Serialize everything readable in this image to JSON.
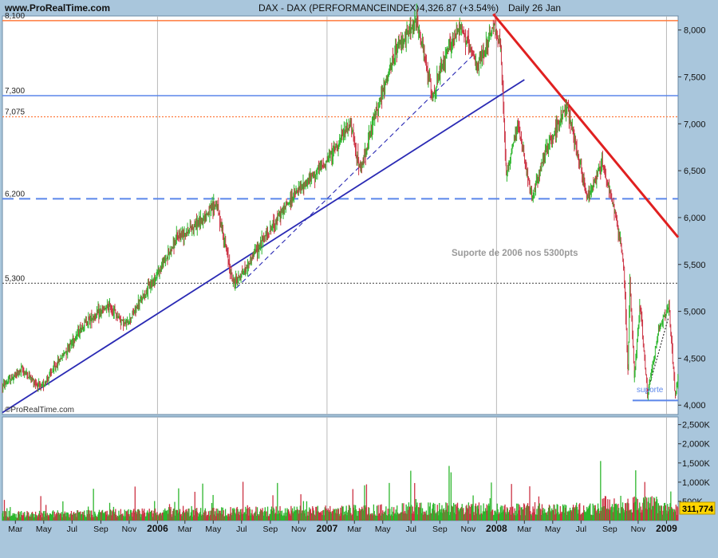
{
  "header": {
    "site": "www.ProRealTime.com",
    "instrument": "DAX - DAX (PERFORMANCEINDEX)",
    "last": "4,326.87 (+3.54%)",
    "period": "Daily  26 Jan"
  },
  "watermark": "©ProRealTime.com",
  "annotations": {
    "support_2006": "Suporte de 2006 nos 5300pts",
    "support": "suporte"
  },
  "colors": {
    "price_up": "#2db62d",
    "price_down": "#cc3344",
    "resistance_line": "#e02020",
    "trend_line": "#2a2ab4",
    "level_blue": "#5b86ea",
    "level_orange": "#ff7a3c"
  },
  "chart_data": [
    {
      "type": "line",
      "name": "price",
      "y_axis": {
        "min": 3900,
        "max": 8150,
        "ticks": [
          4000,
          4500,
          5000,
          5500,
          6000,
          6500,
          7000,
          7500,
          8000
        ],
        "tick_labels": [
          "4,000",
          "4,500",
          "5,000",
          "5,500",
          "6,000",
          "6,500",
          "7,000",
          "7,500",
          "8,000"
        ]
      },
      "x_axis": {
        "start": "2005-02-01",
        "end": "2009-01-26",
        "tick_labels": [
          {
            "date": "2005-03-01",
            "label": "Mar"
          },
          {
            "date": "2005-05-01",
            "label": "May"
          },
          {
            "date": "2005-07-01",
            "label": "Jul"
          },
          {
            "date": "2005-09-01",
            "label": "Sep"
          },
          {
            "date": "2005-11-01",
            "label": "Nov"
          },
          {
            "date": "2006-01-01",
            "label": "2006",
            "year": true
          },
          {
            "date": "2006-03-01",
            "label": "Mar"
          },
          {
            "date": "2006-05-01",
            "label": "May"
          },
          {
            "date": "2006-07-01",
            "label": "Jul"
          },
          {
            "date": "2006-09-01",
            "label": "Sep"
          },
          {
            "date": "2006-11-01",
            "label": "Nov"
          },
          {
            "date": "2007-01-01",
            "label": "2007",
            "year": true
          },
          {
            "date": "2007-03-01",
            "label": "Mar"
          },
          {
            "date": "2007-05-01",
            "label": "May"
          },
          {
            "date": "2007-07-01",
            "label": "Jul"
          },
          {
            "date": "2007-09-01",
            "label": "Sep"
          },
          {
            "date": "2007-11-01",
            "label": "Nov"
          },
          {
            "date": "2008-01-01",
            "label": "2008",
            "year": true
          },
          {
            "date": "2008-03-01",
            "label": "Mar"
          },
          {
            "date": "2008-05-01",
            "label": "May"
          },
          {
            "date": "2008-07-01",
            "label": "Jul"
          },
          {
            "date": "2008-09-01",
            "label": "Sep"
          },
          {
            "date": "2008-11-01",
            "label": "Nov"
          },
          {
            "date": "2009-01-01",
            "label": "2009",
            "year": true
          }
        ]
      },
      "key_points": [
        {
          "date": "2005-02-01",
          "value": 4200
        },
        {
          "date": "2005-03-15",
          "value": 4380
        },
        {
          "date": "2005-04-25",
          "value": 4180
        },
        {
          "date": "2005-06-20",
          "value": 4600
        },
        {
          "date": "2005-08-01",
          "value": 4900
        },
        {
          "date": "2005-09-20",
          "value": 5050
        },
        {
          "date": "2005-10-25",
          "value": 4850
        },
        {
          "date": "2005-12-31",
          "value": 5400
        },
        {
          "date": "2006-02-15",
          "value": 5800
        },
        {
          "date": "2006-04-01",
          "value": 5950
        },
        {
          "date": "2006-05-08",
          "value": 6150
        },
        {
          "date": "2006-06-13",
          "value": 5300
        },
        {
          "date": "2006-07-10",
          "value": 5450
        },
        {
          "date": "2006-08-01",
          "value": 5650
        },
        {
          "date": "2006-10-15",
          "value": 6200
        },
        {
          "date": "2006-12-31",
          "value": 6600
        },
        {
          "date": "2007-02-20",
          "value": 7000
        },
        {
          "date": "2007-03-14",
          "value": 6500
        },
        {
          "date": "2007-04-15",
          "value": 7100
        },
        {
          "date": "2007-06-01",
          "value": 7800
        },
        {
          "date": "2007-07-13",
          "value": 8100
        },
        {
          "date": "2007-08-16",
          "value": 7300
        },
        {
          "date": "2007-09-20",
          "value": 7800
        },
        {
          "date": "2007-10-15",
          "value": 8050
        },
        {
          "date": "2007-11-20",
          "value": 7600
        },
        {
          "date": "2007-12-28",
          "value": 8050
        },
        {
          "date": "2008-01-10",
          "value": 7800
        },
        {
          "date": "2008-01-22",
          "value": 6450
        },
        {
          "date": "2008-02-15",
          "value": 7000
        },
        {
          "date": "2008-03-17",
          "value": 6200
        },
        {
          "date": "2008-04-15",
          "value": 6700
        },
        {
          "date": "2008-06-01",
          "value": 7200
        },
        {
          "date": "2008-07-15",
          "value": 6200
        },
        {
          "date": "2008-08-15",
          "value": 6600
        },
        {
          "date": "2008-09-15",
          "value": 6000
        },
        {
          "date": "2008-10-01",
          "value": 5500
        },
        {
          "date": "2008-10-10",
          "value": 4350
        },
        {
          "date": "2008-10-14",
          "value": 5300
        },
        {
          "date": "2008-10-24",
          "value": 4300
        },
        {
          "date": "2008-11-05",
          "value": 5100
        },
        {
          "date": "2008-11-21",
          "value": 4100
        },
        {
          "date": "2008-12-15",
          "value": 4800
        },
        {
          "date": "2009-01-06",
          "value": 5050
        },
        {
          "date": "2009-01-20",
          "value": 4100
        },
        {
          "date": "2009-01-26",
          "value": 4327
        }
      ],
      "levels": [
        {
          "value": 8100,
          "label": "8,100",
          "style": "solid",
          "color": "#ff7a3c"
        },
        {
          "value": 7300,
          "label": "7,300",
          "style": "solid",
          "color": "#5b86ea"
        },
        {
          "value": 7075,
          "label": "7,075",
          "style": "dotted",
          "color": "#ff7a3c"
        },
        {
          "value": 6200,
          "label": "6,200",
          "style": "dashed",
          "color": "#5b86ea"
        },
        {
          "value": 5300,
          "label": "5,300",
          "style": "dotted",
          "color": "#555555"
        }
      ],
      "trend_lines": [
        {
          "from": {
            "date": "2005-02-01",
            "value": 3920
          },
          "to": {
            "date": "2008-03-01",
            "value": 7470
          },
          "style": "solid",
          "color": "#2a2ab4"
        },
        {
          "from": {
            "date": "2006-06-20",
            "value": 5250
          },
          "to": {
            "date": "2007-11-15",
            "value": 7750
          },
          "style": "dashed",
          "color": "#2a2ab4"
        },
        {
          "from": {
            "date": "2007-12-25",
            "value": 8170
          },
          "to": {
            "date": "2009-01-26",
            "value": 5790
          },
          "style": "solid",
          "color": "#e02020"
        },
        {
          "from": {
            "date": "2008-11-20",
            "value": 4120
          },
          "to": {
            "date": "2009-01-05",
            "value": 4930
          },
          "style": "dotted",
          "color": "#222222"
        }
      ],
      "support_segment": {
        "from": "2008-10-20",
        "to": "2009-01-26",
        "value": 4050
      }
    },
    {
      "type": "bar",
      "name": "volume",
      "y_axis": {
        "min": 0,
        "max": 2700000,
        "ticks": [
          500000,
          1000000,
          1500000,
          2000000,
          2500000
        ],
        "tick_labels": [
          "500K",
          "1,000K",
          "1,500K",
          "2,000K",
          "2,500K"
        ]
      },
      "last_value": 311774,
      "last_label": "311,774"
    }
  ]
}
